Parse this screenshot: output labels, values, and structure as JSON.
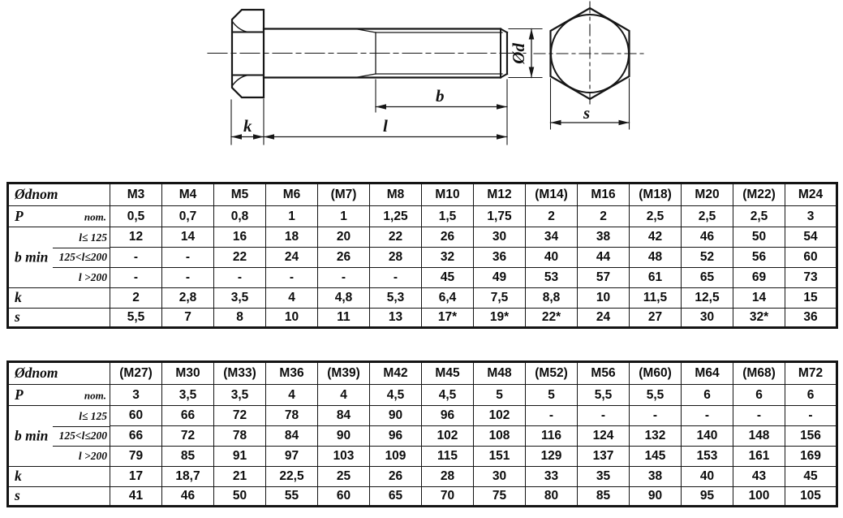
{
  "drawing": {
    "labels": {
      "k": "k",
      "l": "l",
      "b": "b",
      "d": "Ød",
      "s": "s"
    }
  },
  "row_headers": {
    "diameter": "Ødnom",
    "pitch": "P",
    "pitch_unit": "nom.",
    "b_min": "b min",
    "b_cond1": "l≤ 125",
    "b_cond2": "125<l≤200",
    "b_cond3": "l >200",
    "k": "k",
    "s": "s"
  },
  "tables": [
    {
      "columns": [
        "M3",
        "M4",
        "M5",
        "M6",
        "(M7)",
        "M8",
        "M10",
        "M12",
        "(M14)",
        "M16",
        "(M18)",
        "M20",
        "(M22)",
        "M24"
      ],
      "p": [
        "0,5",
        "0,7",
        "0,8",
        "1",
        "1",
        "1,25",
        "1,5",
        "1,75",
        "2",
        "2",
        "2,5",
        "2,5",
        "2,5",
        "3"
      ],
      "b1": [
        "12",
        "14",
        "16",
        "18",
        "20",
        "22",
        "26",
        "30",
        "34",
        "38",
        "42",
        "46",
        "50",
        "54"
      ],
      "b2": [
        "-",
        "-",
        "22",
        "24",
        "26",
        "28",
        "32",
        "36",
        "40",
        "44",
        "48",
        "52",
        "56",
        "60"
      ],
      "b3": [
        "-",
        "-",
        "-",
        "-",
        "-",
        "-",
        "45",
        "49",
        "53",
        "57",
        "61",
        "65",
        "69",
        "73"
      ],
      "k": [
        "2",
        "2,8",
        "3,5",
        "4",
        "4,8",
        "5,3",
        "6,4",
        "7,5",
        "8,8",
        "10",
        "11,5",
        "12,5",
        "14",
        "15"
      ],
      "s": [
        "5,5",
        "7",
        "8",
        "10",
        "11",
        "13",
        "17*",
        "19*",
        "22*",
        "24",
        "27",
        "30",
        "32*",
        "36"
      ]
    },
    {
      "columns": [
        "(M27)",
        "M30",
        "(M33)",
        "M36",
        "(M39)",
        "M42",
        "M45",
        "M48",
        "(M52)",
        "M56",
        "(M60)",
        "M64",
        "(M68)",
        "M72"
      ],
      "p": [
        "3",
        "3,5",
        "3,5",
        "4",
        "4",
        "4,5",
        "4,5",
        "5",
        "5",
        "5,5",
        "5,5",
        "6",
        "6",
        "6"
      ],
      "b1": [
        "60",
        "66",
        "72",
        "78",
        "84",
        "90",
        "96",
        "102",
        "-",
        "-",
        "-",
        "-",
        "-",
        "-"
      ],
      "b2": [
        "66",
        "72",
        "78",
        "84",
        "90",
        "96",
        "102",
        "108",
        "116",
        "124",
        "132",
        "140",
        "148",
        "156"
      ],
      "b3": [
        "79",
        "85",
        "91",
        "97",
        "103",
        "109",
        "115",
        "151",
        "129",
        "137",
        "145",
        "153",
        "161",
        "169"
      ],
      "k": [
        "17",
        "18,7",
        "21",
        "22,5",
        "25",
        "26",
        "28",
        "30",
        "33",
        "35",
        "38",
        "40",
        "43",
        "45"
      ],
      "s": [
        "41",
        "46",
        "50",
        "55",
        "60",
        "65",
        "70",
        "75",
        "80",
        "85",
        "90",
        "95",
        "100",
        "105"
      ]
    }
  ]
}
